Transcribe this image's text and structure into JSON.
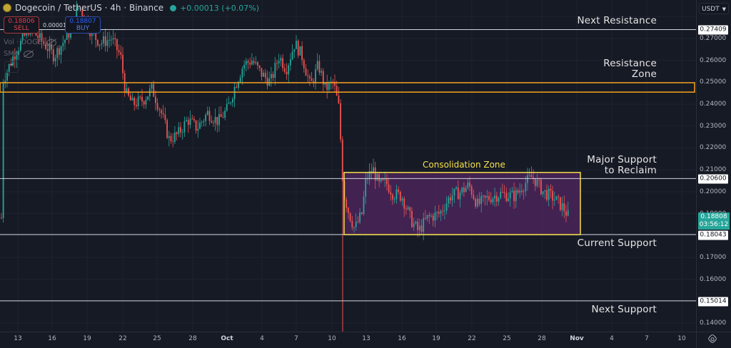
{
  "header": {
    "symbol": "Dogecoin / TetherUS · 4h · Binance",
    "change": "+0.00013 (+0.07%)",
    "sell_price": "0.18806",
    "sell_label": "SELL",
    "buy_price": "0.18807",
    "buy_label": "BUY",
    "spread": "0.00001",
    "indicators": [
      {
        "label": "Vol · DOGE"
      },
      {
        "label": "SMA"
      }
    ]
  },
  "price_axis": {
    "currency": "USDT",
    "ticks": [
      "0.27000",
      "0.26000",
      "0.25000",
      "0.24000",
      "0.23000",
      "0.22000",
      "0.21000",
      "0.20000",
      "0.19000",
      "0.17000",
      "0.16000",
      "0.14000"
    ],
    "labels": {
      "next_resistance": "0.27409",
      "major_support": "0.20600",
      "current_support": "0.18043",
      "next_support": "0.15014"
    },
    "current_price": "0.18808",
    "countdown": "03:56:12"
  },
  "time_axis": {
    "labels": [
      "13",
      "16",
      "19",
      "22",
      "25",
      "28",
      "Oct",
      "4",
      "7",
      "10",
      "13",
      "16",
      "19",
      "22",
      "25",
      "28",
      "Nov",
      "4",
      "7",
      "10"
    ]
  },
  "annotations": {
    "next_resistance": "Next Resistance",
    "resistance_zone_1": "Resistance",
    "resistance_zone_2": "Zone",
    "major_support_1": "Major Support",
    "major_support_2": "to Reclaim",
    "current_support": "Current Support",
    "next_support": "Next Support",
    "consolidation": "Consolidation Zone"
  },
  "colors": {
    "up": "#26a69a",
    "down": "#ef5350",
    "zone_orange": "#f7a21b",
    "consolidation_border": "#f5e04a",
    "consolidation_fill": "#4a2559",
    "level_line": "#d1d4dc",
    "background": "#161a25"
  },
  "chart_data": {
    "type": "candlestick",
    "title": "Dogecoin / TetherUS · 4h · Binance",
    "xlabel": "",
    "ylabel": "USDT",
    "ylim": [
      0.135,
      0.285
    ],
    "x_ticks": [
      "13",
      "16",
      "19",
      "22",
      "25",
      "28",
      "Oct",
      "4",
      "7",
      "10",
      "13",
      "16",
      "19",
      "22",
      "25",
      "28",
      "Nov",
      "4",
      "7",
      "10"
    ],
    "horizontal_levels": [
      {
        "name": "Next Resistance",
        "price": 0.27409
      },
      {
        "name": "Major Support to Reclaim",
        "price": 0.206
      },
      {
        "name": "Current Support",
        "price": 0.18043
      },
      {
        "name": "Next Support",
        "price": 0.15014
      }
    ],
    "zones": [
      {
        "name": "Resistance Zone",
        "from": 0.2455,
        "to": 0.2498,
        "color": "#f7a21b"
      },
      {
        "name": "Consolidation Zone",
        "from": 0.1804,
        "to": 0.2088,
        "x_from": "Oct 11",
        "x_to": "Oct 30",
        "color": "#f5e04a"
      }
    ],
    "price_path_keypoints": [
      {
        "x": 2,
        "p": 0.25
      },
      {
        "x": 18,
        "p": 0.262
      },
      {
        "x": 40,
        "p": 0.275
      },
      {
        "x": 60,
        "p": 0.268
      },
      {
        "x": 75,
        "p": 0.262
      },
      {
        "x": 95,
        "p": 0.272
      },
      {
        "x": 110,
        "p": 0.285
      },
      {
        "x": 128,
        "p": 0.272
      },
      {
        "x": 140,
        "p": 0.268
      },
      {
        "x": 155,
        "p": 0.27
      },
      {
        "x": 168,
        "p": 0.262
      },
      {
        "x": 175,
        "p": 0.245
      },
      {
        "x": 185,
        "p": 0.24
      },
      {
        "x": 200,
        "p": 0.242
      },
      {
        "x": 212,
        "p": 0.247
      },
      {
        "x": 225,
        "p": 0.236
      },
      {
        "x": 236,
        "p": 0.224
      },
      {
        "x": 248,
        "p": 0.226
      },
      {
        "x": 262,
        "p": 0.233
      },
      {
        "x": 275,
        "p": 0.229
      },
      {
        "x": 290,
        "p": 0.236
      },
      {
        "x": 305,
        "p": 0.232
      },
      {
        "x": 318,
        "p": 0.238
      },
      {
        "x": 328,
        "p": 0.248
      },
      {
        "x": 340,
        "p": 0.258
      },
      {
        "x": 352,
        "p": 0.26
      },
      {
        "x": 365,
        "p": 0.254
      },
      {
        "x": 378,
        "p": 0.25
      },
      {
        "x": 390,
        "p": 0.262
      },
      {
        "x": 400,
        "p": 0.256
      },
      {
        "x": 412,
        "p": 0.268
      },
      {
        "x": 422,
        "p": 0.262
      },
      {
        "x": 434,
        "p": 0.248
      },
      {
        "x": 445,
        "p": 0.258
      },
      {
        "x": 455,
        "p": 0.247
      },
      {
        "x": 466,
        "p": 0.25
      },
      {
        "x": 474,
        "p": 0.238
      },
      {
        "x": 480,
        "p": 0.2
      },
      {
        "x": 488,
        "p": 0.19
      },
      {
        "x": 496,
        "p": 0.183
      },
      {
        "x": 506,
        "p": 0.19
      },
      {
        "x": 512,
        "p": 0.206
      },
      {
        "x": 522,
        "p": 0.21
      },
      {
        "x": 530,
        "p": 0.203
      },
      {
        "x": 540,
        "p": 0.204
      },
      {
        "x": 550,
        "p": 0.199
      },
      {
        "x": 562,
        "p": 0.198
      },
      {
        "x": 575,
        "p": 0.187
      },
      {
        "x": 585,
        "p": 0.182
      },
      {
        "x": 598,
        "p": 0.188
      },
      {
        "x": 615,
        "p": 0.19
      },
      {
        "x": 630,
        "p": 0.198
      },
      {
        "x": 645,
        "p": 0.2
      },
      {
        "x": 656,
        "p": 0.203
      },
      {
        "x": 668,
        "p": 0.194
      },
      {
        "x": 682,
        "p": 0.197
      },
      {
        "x": 700,
        "p": 0.199
      },
      {
        "x": 720,
        "p": 0.198
      },
      {
        "x": 735,
        "p": 0.204
      },
      {
        "x": 745,
        "p": 0.207
      },
      {
        "x": 760,
        "p": 0.2
      },
      {
        "x": 775,
        "p": 0.197
      },
      {
        "x": 787,
        "p": 0.193
      },
      {
        "x": 797,
        "p": 0.188
      }
    ]
  }
}
